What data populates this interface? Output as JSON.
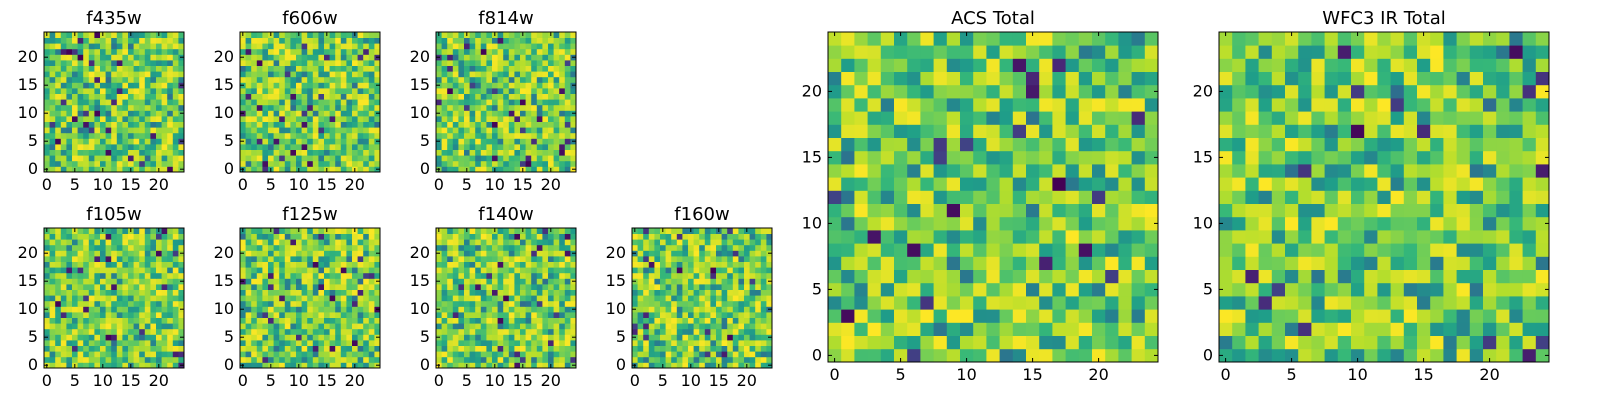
{
  "chart_data": [
    {
      "type": "heatmap",
      "title": "f435w",
      "x_ticks": [
        0,
        5,
        10,
        15,
        20
      ],
      "y_ticks": [
        0,
        5,
        10,
        15,
        20
      ],
      "n": 25,
      "colormap": "viridis",
      "seed": 11
    },
    {
      "type": "heatmap",
      "title": "f606w",
      "x_ticks": [
        0,
        5,
        10,
        15,
        20
      ],
      "y_ticks": [
        0,
        5,
        10,
        15,
        20
      ],
      "n": 25,
      "colormap": "viridis",
      "seed": 23
    },
    {
      "type": "heatmap",
      "title": "f814w",
      "x_ticks": [
        0,
        5,
        10,
        15,
        20
      ],
      "y_ticks": [
        0,
        5,
        10,
        15,
        20
      ],
      "n": 25,
      "colormap": "viridis",
      "seed": 37
    },
    {
      "type": "heatmap",
      "title": "f105w",
      "x_ticks": [
        0,
        5,
        10,
        15,
        20
      ],
      "y_ticks": [
        0,
        5,
        10,
        15,
        20
      ],
      "n": 25,
      "colormap": "viridis",
      "seed": 41
    },
    {
      "type": "heatmap",
      "title": "f125w",
      "x_ticks": [
        0,
        5,
        10,
        15,
        20
      ],
      "y_ticks": [
        0,
        5,
        10,
        15,
        20
      ],
      "n": 25,
      "colormap": "viridis",
      "seed": 53
    },
    {
      "type": "heatmap",
      "title": "f140w",
      "x_ticks": [
        0,
        5,
        10,
        15,
        20
      ],
      "y_ticks": [
        0,
        5,
        10,
        15,
        20
      ],
      "n": 25,
      "colormap": "viridis",
      "seed": 67
    },
    {
      "type": "heatmap",
      "title": "f160w",
      "x_ticks": [
        0,
        5,
        10,
        15,
        20
      ],
      "y_ticks": [
        0,
        5,
        10,
        15,
        20
      ],
      "n": 25,
      "colormap": "viridis",
      "seed": 79
    },
    {
      "type": "heatmap",
      "title": "ACS Total",
      "x_ticks": [
        0,
        5,
        10,
        15,
        20
      ],
      "y_ticks": [
        0,
        5,
        10,
        15,
        20
      ],
      "n": 25,
      "colormap": "viridis",
      "seed": 97
    },
    {
      "type": "heatmap",
      "title": "WFC3 IR Total",
      "x_ticks": [
        0,
        5,
        10,
        15,
        20
      ],
      "y_ticks": [
        0,
        5,
        10,
        15,
        20
      ],
      "n": 25,
      "colormap": "viridis",
      "seed": 131
    }
  ]
}
